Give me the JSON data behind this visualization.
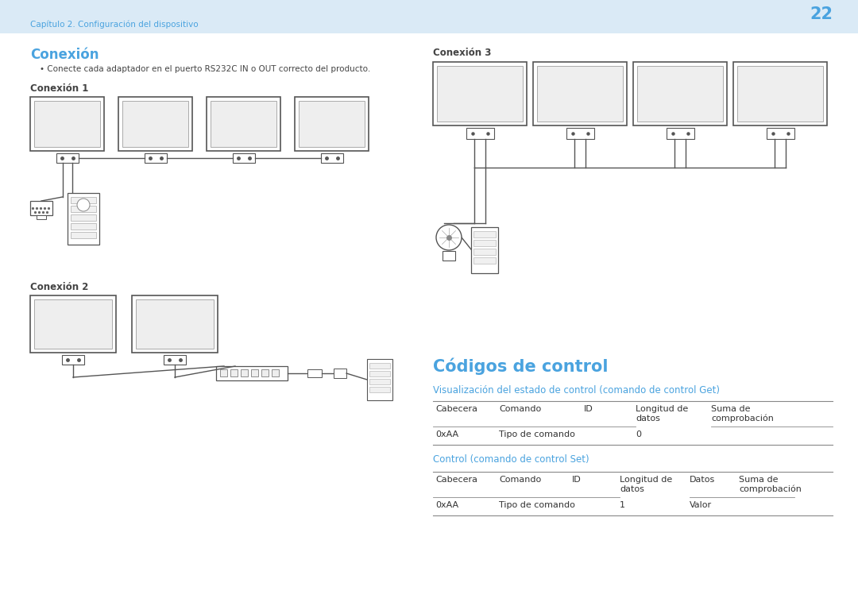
{
  "page_num": "22",
  "header_bg": "#daeaf6",
  "header_text": "Capítulo 2. Configuración del dispositivo",
  "header_text_color": "#4aa3df",
  "page_num_color": "#4aa3df",
  "bg_color": "#ffffff",
  "section_title_color": "#4aa3df",
  "body_text_color": "#444444",
  "section_conexion_title": "Conexión",
  "bullet_text": "Conecte cada adaptador en el puerto RS232C IN o OUT correcto del producto.",
  "conexion1_label": "Conexión 1",
  "conexion2_label": "Conexión 2",
  "conexion3_label": "Conexión 3",
  "codigos_title": "Códigos de control",
  "viz_title": "Visualización del estado de control (comando de control Get)",
  "viz_headers": [
    "Cabecera",
    "Comando",
    "ID",
    "Longitud de\ndatos",
    "Suma de\ncomprobación"
  ],
  "viz_row": [
    "0xAA",
    "Tipo de comando",
    "",
    "0",
    ""
  ],
  "control_title": "Control (comando de control Set)",
  "ctrl_headers": [
    "Cabecera",
    "Comando",
    "ID",
    "Longitud de\ndatos",
    "Datos",
    "Suma de\ncomprobación"
  ],
  "ctrl_row": [
    "0xAA",
    "Tipo de comando",
    "",
    "1",
    "Valor",
    ""
  ]
}
